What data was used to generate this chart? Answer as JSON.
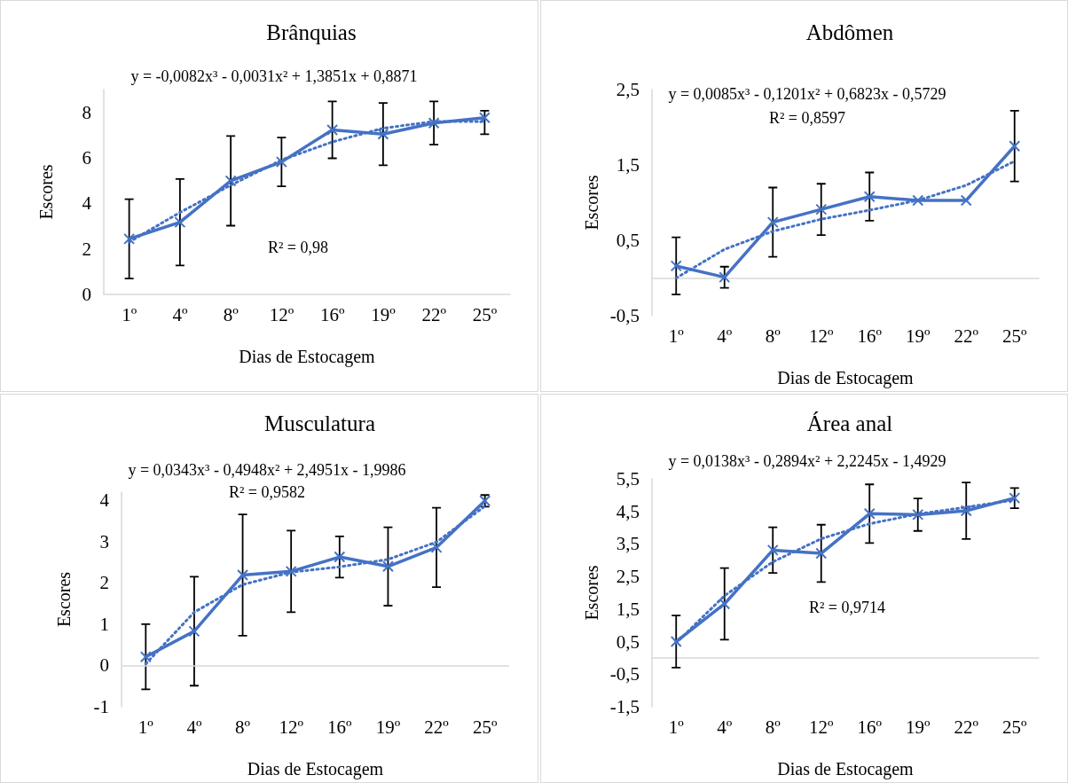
{
  "chart_data": [
    {
      "type": "line",
      "title": "Brânquias",
      "xlabel": "Dias de Estocagem",
      "ylabel": "Escores",
      "annotations": [
        "y = -0,0082x³ - 0,0031x² + 1,3851x + 0,8871",
        "R² = 0,98"
      ],
      "categories": [
        "1º",
        "4º",
        "8º",
        "12º",
        "16º",
        "19º",
        "22º",
        "25º"
      ],
      "ylim": [
        0,
        9
      ],
      "yticks": [
        0,
        2,
        4,
        6,
        8
      ],
      "grid": false,
      "marker": "cross",
      "series": [
        {
          "color": "#4472c4",
          "values": [
            2.44,
            3.17,
            4.99,
            5.82,
            7.23,
            7.04,
            7.53,
            7.76
          ],
          "errors": [
            1.74,
            1.9,
            1.97,
            1.07,
            1.25,
            1.37,
            0.95,
            [
              7.04,
              8.07
            ]
          ]
        },
        {
          "type": "line",
          "color": "#4472c4",
          "line_style": "dotted",
          "marker": "none",
          "x": [
            "1º",
            "4º",
            "8º",
            "12º",
            "16º",
            "19º",
            "22º",
            "25º"
          ],
          "values": [
            2.3,
            3.6,
            4.8,
            5.9,
            6.7,
            7.3,
            7.6,
            7.6
          ]
        }
      ]
    },
    {
      "type": "line",
      "title": "Abdômen",
      "xlabel": "Dias de Estocagem",
      "ylabel": "Escores",
      "annotations": [
        "y = 0,0085x³ - 0,1201x² + 0,6823x - 0,5729",
        "R² = 0,8597"
      ],
      "categories": [
        "1º",
        "4º",
        "8º",
        "12º",
        "16º",
        "19º",
        "22º",
        "25º"
      ],
      "ylim": [
        -0.5,
        2.5
      ],
      "yticks": [
        {
          "value": -0.5,
          "label": "-0,5"
        },
        {
          "value": 0.5,
          "label": "0,5"
        },
        {
          "value": 1.5,
          "label": "1,5"
        },
        {
          "value": 2.5,
          "label": "2,5"
        }
      ],
      "grid": false,
      "marker": "cross",
      "series": [
        {
          "color": "#4472c4",
          "values": [
            0.16,
            0.01,
            0.74,
            0.91,
            1.08,
            1.03,
            1.03,
            1.75
          ],
          "errors": [
            0.38,
            0.14,
            0.46,
            0.34,
            0.32,
            null,
            null,
            0.47
          ]
        },
        {
          "type": "line",
          "color": "#4472c4",
          "line_style": "dotted",
          "marker": "none",
          "x": [
            "1º",
            "4º",
            "8º",
            "12º",
            "16º",
            "19º",
            "22º",
            "25º"
          ],
          "values": [
            0.0,
            0.38,
            0.62,
            0.78,
            0.9,
            1.03,
            1.23,
            1.55
          ]
        }
      ]
    },
    {
      "type": "line",
      "title": "Musculatura",
      "xlabel": "Dias de Estocagem",
      "ylabel": "Escores",
      "annotations": [
        "y = 0,0343x³ - 0,4948x² + 2,4951x - 1,9986",
        "R² = 0,9582"
      ],
      "categories": [
        "1º",
        "4º",
        "8º",
        "12º",
        "16º",
        "19º",
        "22º",
        "25º"
      ],
      "ylim": [
        -1,
        4.2
      ],
      "yticks": [
        -1,
        0,
        1,
        2,
        3,
        4
      ],
      "grid": false,
      "ref_lines": [
        {
          "axis": "y",
          "value": 0,
          "color": "#d9d9d9"
        }
      ],
      "marker": "cross",
      "series": [
        {
          "color": "#4472c4",
          "values": [
            0.21,
            0.83,
            2.19,
            2.28,
            2.63,
            2.4,
            2.86,
            3.99
          ],
          "errors": [
            0.79,
            1.32,
            1.47,
            0.99,
            0.5,
            0.95,
            0.96,
            0.14
          ]
        },
        {
          "type": "line",
          "color": "#4472c4",
          "line_style": "dotted",
          "marker": "none",
          "x": [
            "1º",
            "4º",
            "8º",
            "12º",
            "16º",
            "19º",
            "22º",
            "25º"
          ],
          "values": [
            0.04,
            1.29,
            1.96,
            2.26,
            2.39,
            2.57,
            2.99,
            3.86
          ]
        }
      ]
    },
    {
      "type": "line",
      "title": "Área anal",
      "xlabel": "Dias de Estocagem",
      "ylabel": "Escores",
      "annotations": [
        "y = 0,0138x³ - 0,2894x² + 2,2245x - 1,4929",
        "R² = 0,9714"
      ],
      "categories": [
        "1º",
        "4º",
        "8º",
        "12º",
        "16º",
        "19º",
        "22º",
        "25º"
      ],
      "ylim": [
        -1.5,
        5.5
      ],
      "yticks": [
        {
          "value": -1.5,
          "label": "-1,5"
        },
        {
          "value": -0.5,
          "label": "-0,5"
        },
        {
          "value": 0.5,
          "label": "0,5"
        },
        {
          "value": 1.5,
          "label": "1,5"
        },
        {
          "value": 2.5,
          "label": "2,5"
        },
        {
          "value": 3.5,
          "label": "3,5"
        },
        {
          "value": 4.5,
          "label": "4,5"
        },
        {
          "value": 5.5,
          "label": "5,5"
        }
      ],
      "grid": false,
      "marker": "cross",
      "series": [
        {
          "color": "#4472c4",
          "values": [
            0.5,
            1.66,
            3.31,
            3.21,
            4.43,
            4.4,
            4.52,
            4.91
          ],
          "errors": [
            0.8,
            1.1,
            0.7,
            0.88,
            0.9,
            0.5,
            0.87,
            0.31
          ]
        },
        {
          "type": "line",
          "color": "#4472c4",
          "line_style": "dotted",
          "marker": "none",
          "x": [
            "1º",
            "4º",
            "8º",
            "12º",
            "16º",
            "19º",
            "22º",
            "25º"
          ],
          "values": [
            0.46,
            1.91,
            2.95,
            3.66,
            4.12,
            4.42,
            4.63,
            4.85
          ]
        }
      ]
    }
  ]
}
